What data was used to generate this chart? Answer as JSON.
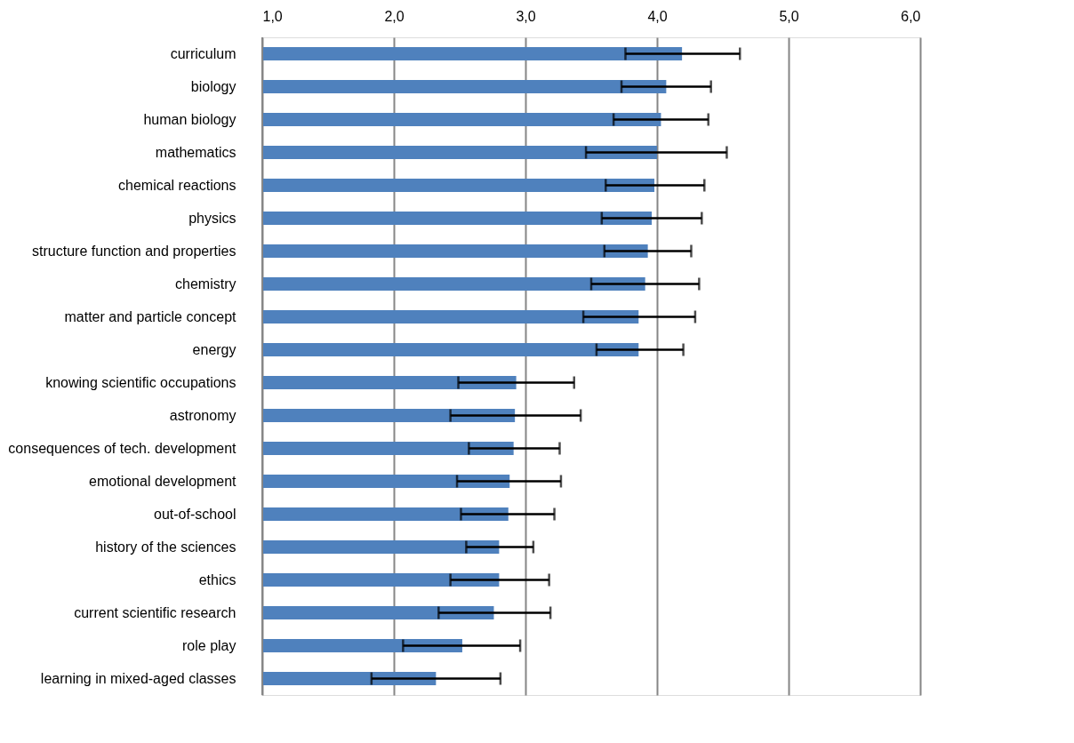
{
  "chart_data": {
    "type": "bar",
    "orientation": "horizontal",
    "categories": [
      "curriculum",
      "biology",
      "human biology",
      "mathematics",
      "chemical reactions",
      "physics",
      "structure function and properties",
      "chemistry",
      "matter and particle concept",
      "energy",
      "knowing scientific occupations",
      "astronomy",
      "consequences of tech. development",
      "emotional development",
      "out-of-school",
      "history of the sciences",
      "ethics",
      "current scientific research",
      "role play",
      "learning in mixed-aged classes"
    ],
    "values": [
      4.19,
      4.07,
      4.03,
      4.0,
      3.98,
      3.96,
      3.93,
      3.91,
      3.86,
      3.86,
      2.93,
      2.92,
      2.91,
      2.88,
      2.87,
      2.8,
      2.8,
      2.76,
      2.52,
      2.32
    ],
    "errors": [
      [
        3.76,
        4.63
      ],
      [
        3.73,
        4.41
      ],
      [
        3.67,
        4.39
      ],
      [
        3.46,
        4.53
      ],
      [
        3.61,
        4.36
      ],
      [
        3.58,
        4.34
      ],
      [
        3.6,
        4.26
      ],
      [
        3.5,
        4.32
      ],
      [
        3.44,
        4.29
      ],
      [
        3.54,
        4.2
      ],
      [
        2.49,
        3.37
      ],
      [
        2.43,
        3.42
      ],
      [
        2.57,
        3.26
      ],
      [
        2.48,
        3.27
      ],
      [
        2.51,
        3.22
      ],
      [
        2.55,
        3.06
      ],
      [
        2.43,
        3.18
      ],
      [
        2.34,
        3.19
      ],
      [
        2.07,
        2.96
      ],
      [
        1.83,
        2.81
      ]
    ],
    "color": "#4f81bd",
    "xlim": [
      1,
      6
    ],
    "xticks": [
      {
        "value": 1,
        "label": "1,0"
      },
      {
        "value": 2,
        "label": "2,0"
      },
      {
        "value": 3,
        "label": "3,0"
      },
      {
        "value": 4,
        "label": "4,0"
      },
      {
        "value": 5,
        "label": "5,0"
      },
      {
        "value": 6,
        "label": "6,0"
      }
    ],
    "grid": "x"
  }
}
